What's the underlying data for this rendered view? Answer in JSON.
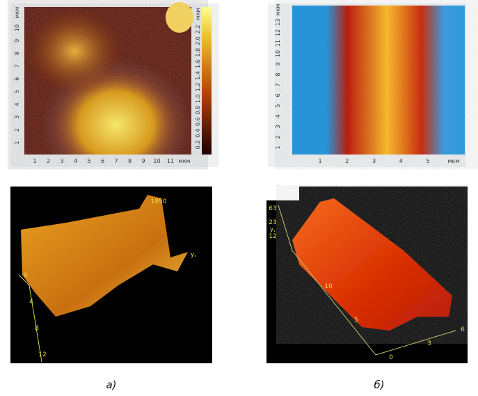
{
  "panel_a": {
    "map": {
      "x_ticks": [
        "1",
        "2",
        "3",
        "4",
        "5",
        "6",
        "7",
        "8",
        "9",
        "10",
        "11"
      ],
      "x_unit": "мкм",
      "y_ticks": [
        "1",
        "2",
        "3",
        "4",
        "5",
        "6",
        "7",
        "8",
        "9",
        "10"
      ],
      "y_unit": "мкм",
      "colorbar_ticks": [
        "0.2",
        "0.4",
        "0.6",
        "0.8",
        "1.0",
        "1.2",
        "1.4",
        "1.6",
        "1.8",
        "2.0",
        "2.2"
      ],
      "colorbar_unit": "мкм"
    },
    "view_3d": {
      "peak_label": "1850",
      "axis_label": "y,",
      "z_ticks": [
        "0",
        "4",
        "8",
        "12"
      ]
    },
    "caption": "а)"
  },
  "panel_b": {
    "map": {
      "x_ticks": [
        "1",
        "2",
        "3",
        "4",
        "5"
      ],
      "x_unit": "мкм",
      "y_ticks": [
        "1",
        "2",
        "3",
        "4",
        "5",
        "6",
        "7",
        "8",
        "9",
        "10",
        "11",
        "12",
        "13"
      ],
      "y_unit": "мкм"
    },
    "view_3d": {
      "z_ticks": [
        "63",
        "23",
        "12"
      ],
      "axis_label": "y,",
      "depth_ticks": [
        "10",
        "5"
      ],
      "corner_label": "0",
      "front_ticks": [
        "3",
        "6"
      ]
    },
    "caption": "б)"
  }
}
